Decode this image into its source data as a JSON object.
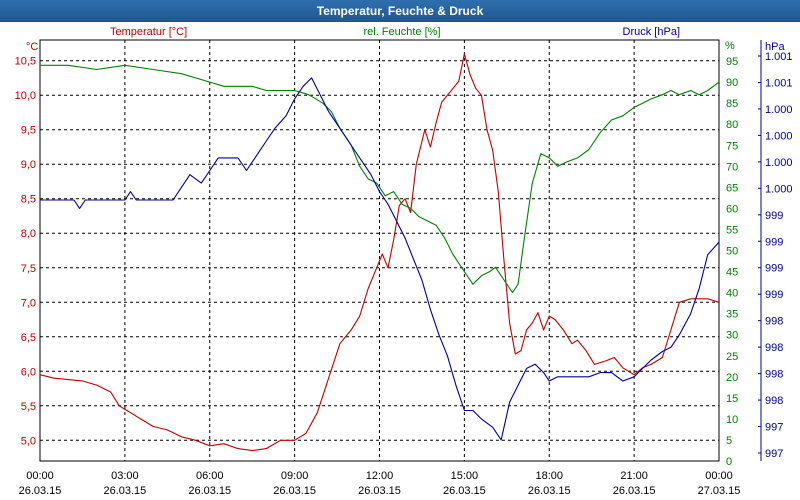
{
  "window": {
    "title": "Temperatur, Feuchte & Druck"
  },
  "chart_data": {
    "type": "line",
    "title": "Temperatur, Feuchte & Druck",
    "x_ticks": [
      {
        "time": "00:00",
        "date": "26.03.15"
      },
      {
        "time": "03:00",
        "date": "26.03.15"
      },
      {
        "time": "06:00",
        "date": "26.03.15"
      },
      {
        "time": "09:00",
        "date": "26.03.15"
      },
      {
        "time": "12:00",
        "date": "26.03.15"
      },
      {
        "time": "15:00",
        "date": "26.03.15"
      },
      {
        "time": "18:00",
        "date": "26.03.15"
      },
      {
        "time": "21:00",
        "date": "26.03.15"
      },
      {
        "time": "00:00",
        "date": "27.03.15"
      }
    ],
    "xlim_hours": [
      0,
      24
    ],
    "axes": {
      "temperature": {
        "label": "Temperatur [°C]",
        "unit": "°C",
        "color": "#c00000",
        "ylim": [
          4.7,
          10.8
        ],
        "ticks": [
          "5,0",
          "5,5",
          "6,0",
          "6,5",
          "7,0",
          "7,5",
          "8,0",
          "8,5",
          "9,0",
          "9,5",
          "10,0",
          "10,5"
        ]
      },
      "humidity": {
        "label": "rel. Feuchte [%]",
        "unit": "%",
        "color": "#008000",
        "ylim": [
          0,
          100
        ],
        "ticks": [
          "0",
          "5",
          "10",
          "15",
          "20",
          "25",
          "30",
          "35",
          "40",
          "45",
          "50",
          "55",
          "60",
          "65",
          "70",
          "75",
          "80",
          "85",
          "90",
          "95"
        ]
      },
      "pressure": {
        "label": "Druck [hPa]",
        "unit": "hPa",
        "color": "#000099",
        "ticks": [
          "997",
          "997",
          "998",
          "998",
          "998",
          "998",
          "999",
          "999",
          "999",
          "999",
          "1.000",
          "1.000",
          "1.000",
          "1.000",
          "1.001",
          "1.001"
        ]
      }
    },
    "series": [
      {
        "name": "Temperatur",
        "axis": "temperature",
        "color": "#c00000",
        "x": [
          0,
          0.5,
          1,
          1.5,
          2,
          2.5,
          2.8,
          3.2,
          3.6,
          4,
          4.5,
          5,
          5.5,
          6,
          6.5,
          7,
          7.5,
          8,
          8.5,
          9,
          9.4,
          9.8,
          10.2,
          10.6,
          11,
          11.3,
          11.6,
          11.9,
          12.1,
          12.3,
          12.5,
          12.7,
          12.9,
          13.1,
          13.3,
          13.6,
          13.8,
          14,
          14.2,
          14.5,
          14.8,
          15,
          15.2,
          15.4,
          15.6,
          15.8,
          16,
          16.2,
          16.4,
          16.6,
          16.8,
          17,
          17.2,
          17.4,
          17.6,
          17.8,
          18,
          18.2,
          18.5,
          18.8,
          19,
          19.3,
          19.6,
          20,
          20.3,
          20.6,
          21,
          21.3,
          21.6,
          22,
          22.3,
          22.6,
          23,
          23.3,
          23.6,
          24
        ],
        "values": [
          5.95,
          5.9,
          5.88,
          5.86,
          5.8,
          5.7,
          5.5,
          5.4,
          5.3,
          5.2,
          5.15,
          5.05,
          5.0,
          4.92,
          4.95,
          4.88,
          4.85,
          4.88,
          5.0,
          5.0,
          5.1,
          5.4,
          5.9,
          6.4,
          6.6,
          6.8,
          7.2,
          7.5,
          7.7,
          7.5,
          7.9,
          8.4,
          8.5,
          8.3,
          9.0,
          9.5,
          9.25,
          9.6,
          9.9,
          10.05,
          10.2,
          10.6,
          10.3,
          10.1,
          10.0,
          9.5,
          9.2,
          8.6,
          7.6,
          6.7,
          6.25,
          6.3,
          6.6,
          6.7,
          6.85,
          6.6,
          6.8,
          6.75,
          6.6,
          6.4,
          6.45,
          6.3,
          6.1,
          6.15,
          6.2,
          6.05,
          5.95,
          6.05,
          6.1,
          6.2,
          6.6,
          7.0,
          7.05,
          7.05,
          7.05,
          7.0
        ]
      },
      {
        "name": "rel. Feuchte",
        "axis": "humidity",
        "color": "#008000",
        "x": [
          0,
          1,
          2,
          3,
          4,
          5,
          5.5,
          6,
          6.5,
          7,
          7.5,
          8,
          8.5,
          9,
          9.5,
          10,
          10.3,
          10.6,
          11,
          11.3,
          11.6,
          11.9,
          12.2,
          12.5,
          12.8,
          13.1,
          13.4,
          13.7,
          14,
          14.3,
          14.6,
          14.9,
          15.1,
          15.3,
          15.6,
          15.9,
          16.1,
          16.4,
          16.7,
          16.9,
          17.1,
          17.4,
          17.7,
          18,
          18.3,
          18.6,
          19,
          19.4,
          19.8,
          20.2,
          20.6,
          21,
          21.3,
          21.6,
          22,
          22.3,
          22.6,
          23,
          23.3,
          23.6,
          24
        ],
        "values": [
          94,
          94,
          93,
          94,
          93,
          92,
          91,
          90,
          89,
          89,
          89,
          88,
          88,
          88,
          87,
          85,
          83,
          79,
          75,
          70,
          67,
          66,
          63,
          64,
          61,
          60,
          58,
          57,
          56,
          53,
          49,
          46,
          44,
          42,
          44,
          45,
          46,
          43,
          40,
          42,
          52,
          66,
          73,
          72,
          70,
          71,
          72,
          74,
          78,
          81,
          82,
          84,
          85,
          86,
          87,
          88,
          87,
          88,
          87,
          88,
          90
        ]
      },
      {
        "name": "Druck",
        "axis": "pressure",
        "color": "#000099",
        "x": [
          0,
          0.6,
          1.2,
          1.4,
          1.6,
          2,
          2.5,
          3,
          3.2,
          3.4,
          3.8,
          4.3,
          4.7,
          5,
          5.3,
          5.7,
          6,
          6.3,
          6.7,
          7,
          7.3,
          7.7,
          8,
          8.3,
          8.7,
          9,
          9.3,
          9.6,
          9.9,
          10.2,
          10.5,
          10.8,
          11.1,
          11.4,
          11.7,
          12,
          12.3,
          12.6,
          12.9,
          13.2,
          13.5,
          13.8,
          14.1,
          14.4,
          14.7,
          15,
          15.3,
          15.6,
          16,
          16.3,
          16.6,
          16.9,
          17.2,
          17.5,
          17.8,
          18,
          18.3,
          18.6,
          19,
          19.4,
          19.8,
          20.2,
          20.6,
          21,
          21.3,
          21.6,
          22,
          22.3,
          22.6,
          23,
          23.3,
          23.6,
          24
        ],
        "values": [
          62,
          62,
          62,
          60,
          62,
          62,
          62,
          62,
          64,
          62,
          62,
          62,
          62,
          65,
          68,
          66,
          69,
          72,
          72,
          72,
          69,
          73,
          76,
          79,
          82,
          86,
          89,
          91,
          87,
          83,
          80,
          77,
          74,
          71,
          68,
          64,
          61,
          57,
          53,
          48,
          43,
          36,
          30,
          25,
          18,
          12,
          12,
          10,
          8,
          5,
          14,
          18,
          22,
          23,
          21,
          19,
          20,
          20,
          20,
          20,
          21,
          21,
          19,
          20,
          22,
          24,
          26,
          27,
          30,
          35,
          41,
          49,
          52
        ]
      }
    ]
  }
}
